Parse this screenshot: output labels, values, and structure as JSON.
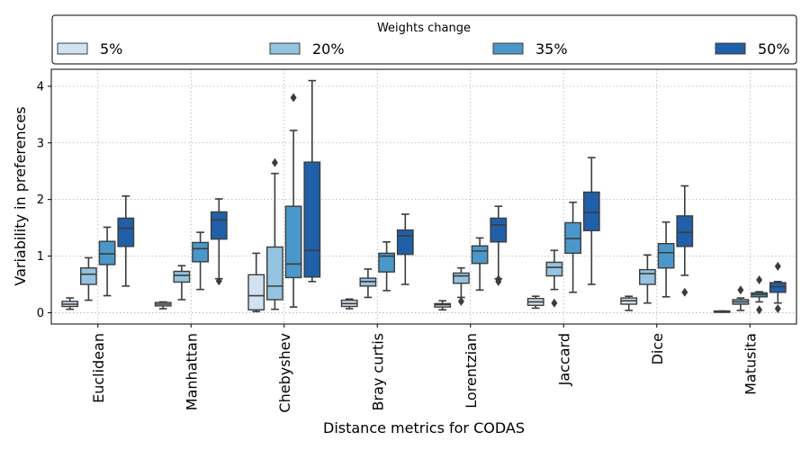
{
  "chart_data": {
    "type": "box",
    "ylabel": "Variability in preferences",
    "xlabel": "Distance metrics for CODAS",
    "ylim": [
      -0.2,
      4.3
    ],
    "yticks": [
      0,
      1,
      2,
      3,
      4
    ],
    "grid": true,
    "legend": {
      "title": "Weights change",
      "placement": "top",
      "ncol": 4
    },
    "categories": [
      "Euclidean",
      "Manhattan",
      "Chebyshev",
      "Bray curtis",
      "Lorentzian",
      "Jaccard",
      "Dice",
      "Matusita"
    ],
    "series": [
      {
        "name": "5%",
        "color": "#d0e1f2",
        "boxes": [
          {
            "whislo": 0.06,
            "q1": 0.11,
            "med": 0.15,
            "q3": 0.2,
            "whishi": 0.26,
            "fliers": []
          },
          {
            "whislo": 0.07,
            "q1": 0.12,
            "med": 0.15,
            "q3": 0.18,
            "whishi": 0.19,
            "fliers": []
          },
          {
            "whislo": 0.02,
            "q1": 0.05,
            "med": 0.3,
            "q3": 0.67,
            "whishi": 1.05,
            "fliers": []
          },
          {
            "whislo": 0.07,
            "q1": 0.11,
            "med": 0.16,
            "q3": 0.22,
            "whishi": 0.24,
            "fliers": []
          },
          {
            "whislo": 0.05,
            "q1": 0.1,
            "med": 0.14,
            "q3": 0.16,
            "whishi": 0.21,
            "fliers": []
          },
          {
            "whislo": 0.08,
            "q1": 0.13,
            "med": 0.19,
            "q3": 0.25,
            "whishi": 0.29,
            "fliers": []
          },
          {
            "whislo": 0.04,
            "q1": 0.15,
            "med": 0.21,
            "q3": 0.26,
            "whishi": 0.29,
            "fliers": []
          },
          {
            "whislo": 0.01,
            "q1": 0.01,
            "med": 0.02,
            "q3": 0.03,
            "whishi": 0.03,
            "fliers": []
          }
        ]
      },
      {
        "name": "20%",
        "color": "#94c4df",
        "boxes": [
          {
            "whislo": 0.22,
            "q1": 0.5,
            "med": 0.68,
            "q3": 0.79,
            "whishi": 0.97,
            "fliers": []
          },
          {
            "whislo": 0.23,
            "q1": 0.54,
            "med": 0.66,
            "q3": 0.73,
            "whishi": 0.83,
            "fliers": []
          },
          {
            "whislo": 0.06,
            "q1": 0.23,
            "med": 0.47,
            "q3": 1.16,
            "whishi": 2.46,
            "fliers": [
              2.65
            ]
          },
          {
            "whislo": 0.27,
            "q1": 0.47,
            "med": 0.55,
            "q3": 0.61,
            "whishi": 0.77,
            "fliers": []
          },
          {
            "whislo": 0.27,
            "q1": 0.52,
            "med": 0.65,
            "q3": 0.7,
            "whishi": 0.79,
            "fliers": [
              0.2
            ]
          },
          {
            "whislo": 0.41,
            "q1": 0.65,
            "med": 0.8,
            "q3": 0.89,
            "whishi": 1.1,
            "fliers": [
              0.17
            ]
          },
          {
            "whislo": 0.17,
            "q1": 0.5,
            "med": 0.69,
            "q3": 0.76,
            "whishi": 1.02,
            "fliers": []
          },
          {
            "whislo": 0.04,
            "q1": 0.15,
            "med": 0.19,
            "q3": 0.23,
            "whishi": 0.26,
            "fliers": [
              0.4
            ]
          }
        ]
      },
      {
        "name": "35%",
        "color": "#4a98c9",
        "boxes": [
          {
            "whislo": 0.3,
            "q1": 0.85,
            "med": 1.04,
            "q3": 1.26,
            "whishi": 1.51,
            "fliers": []
          },
          {
            "whislo": 0.41,
            "q1": 0.9,
            "med": 1.13,
            "q3": 1.24,
            "whishi": 1.42,
            "fliers": []
          },
          {
            "whislo": 0.1,
            "q1": 0.62,
            "med": 0.86,
            "q3": 1.88,
            "whishi": 3.22,
            "fliers": [
              3.8
            ]
          },
          {
            "whislo": 0.39,
            "q1": 0.72,
            "med": 1.0,
            "q3": 1.05,
            "whishi": 1.25,
            "fliers": []
          },
          {
            "whislo": 0.4,
            "q1": 0.87,
            "med": 1.09,
            "q3": 1.18,
            "whishi": 1.32,
            "fliers": []
          },
          {
            "whislo": 0.36,
            "q1": 1.05,
            "med": 1.31,
            "q3": 1.59,
            "whishi": 1.95,
            "fliers": []
          },
          {
            "whislo": 0.28,
            "q1": 0.79,
            "med": 1.06,
            "q3": 1.22,
            "whishi": 1.6,
            "fliers": []
          },
          {
            "whislo": 0.19,
            "q1": 0.28,
            "med": 0.32,
            "q3": 0.35,
            "whishi": 0.37,
            "fliers": [
              0.58,
              0.05
            ]
          }
        ]
      },
      {
        "name": "50%",
        "color": "#2060a9",
        "boxes": [
          {
            "whislo": 0.47,
            "q1": 1.17,
            "med": 1.49,
            "q3": 1.67,
            "whishi": 2.06,
            "fliers": []
          },
          {
            "whislo": 0.6,
            "q1": 1.3,
            "med": 1.64,
            "q3": 1.78,
            "whishi": 2.01,
            "fliers": [
              0.56
            ]
          },
          {
            "whislo": 0.55,
            "q1": 0.63,
            "med": 1.1,
            "q3": 2.66,
            "whishi": 4.1,
            "fliers": []
          },
          {
            "whislo": 0.5,
            "q1": 1.03,
            "med": 1.36,
            "q3": 1.46,
            "whishi": 1.74,
            "fliers": []
          },
          {
            "whislo": 0.6,
            "q1": 1.25,
            "med": 1.55,
            "q3": 1.67,
            "whishi": 1.88,
            "fliers": [
              0.55,
              0.59
            ]
          },
          {
            "whislo": 0.5,
            "q1": 1.45,
            "med": 1.77,
            "q3": 2.13,
            "whishi": 2.74,
            "fliers": []
          },
          {
            "whislo": 0.66,
            "q1": 1.17,
            "med": 1.42,
            "q3": 1.71,
            "whishi": 2.24,
            "fliers": [
              0.36
            ]
          },
          {
            "whislo": 0.17,
            "q1": 0.36,
            "med": 0.46,
            "q3": 0.53,
            "whishi": 0.55,
            "fliers": [
              0.82,
              0.07
            ]
          }
        ]
      }
    ]
  }
}
